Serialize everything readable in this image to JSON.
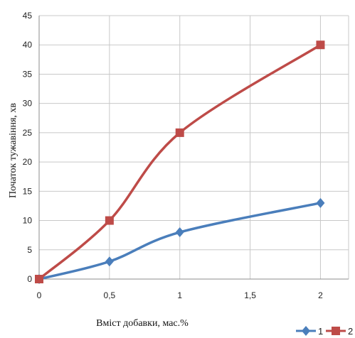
{
  "chart_data": {
    "type": "line",
    "x": [
      0,
      0.5,
      1,
      2
    ],
    "series": [
      {
        "name": "1",
        "values": [
          0,
          3,
          8,
          13
        ],
        "color": "#4a7ebb",
        "marker": "diamond"
      },
      {
        "name": "2",
        "values": [
          0,
          10,
          25,
          40
        ],
        "color": "#be4b48",
        "marker": "square"
      }
    ],
    "xlabel": "Вміст добавки, мас.%",
    "ylabel": "Початок тужавіння, хв",
    "xlim": [
      0,
      2.2
    ],
    "ylim": [
      0,
      45
    ],
    "x_ticks": [
      "0",
      "0,5",
      "1",
      "1,5",
      "2"
    ],
    "y_ticks": [
      "0",
      "5",
      "10",
      "15",
      "20",
      "25",
      "30",
      "35",
      "40",
      "45"
    ],
    "grid": true,
    "smooth": true,
    "legend": "bottom-right"
  }
}
